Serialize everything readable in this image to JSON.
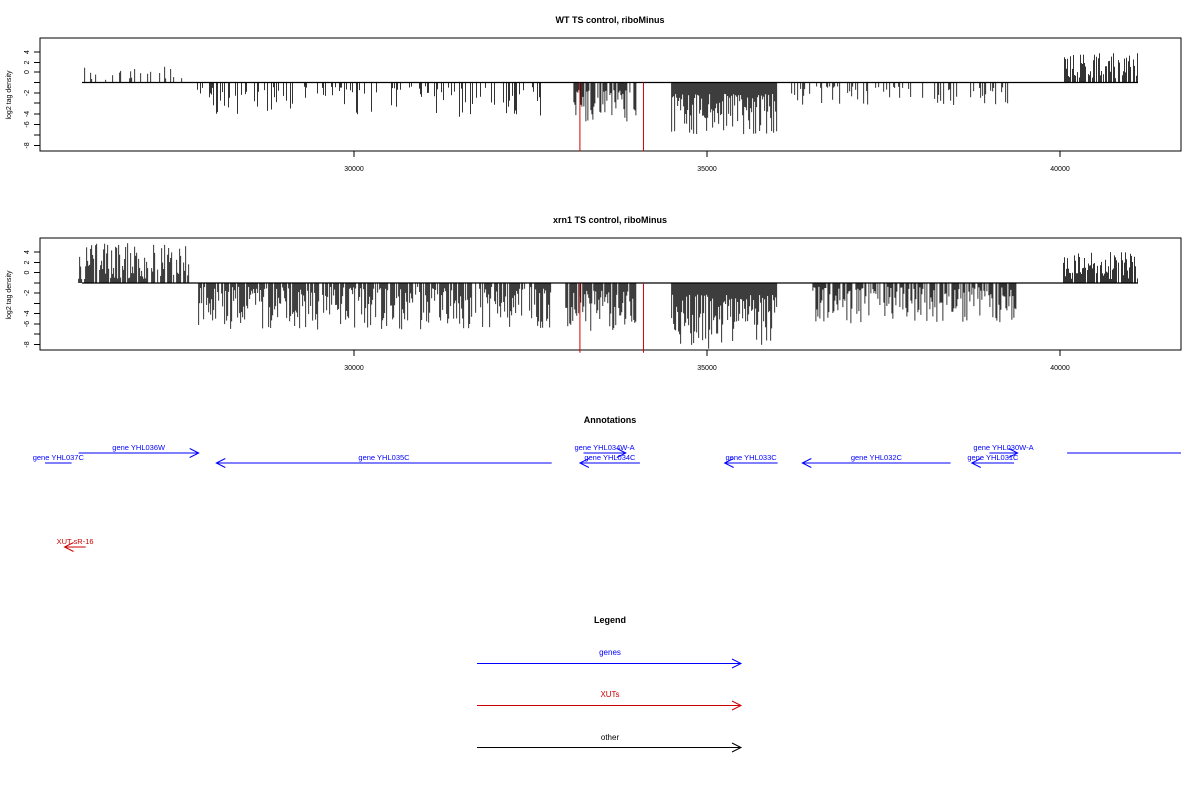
{
  "panels": [
    {
      "title": "WT TS control, riboMinus",
      "ylabel": "log2 tag density",
      "yticks": [
        "4",
        "2",
        "0",
        "-2",
        "-4",
        "-6",
        "-8"
      ],
      "xticks": [
        "30000",
        "35000",
        "40000"
      ]
    },
    {
      "title": "xrn1 TS control, riboMinus",
      "ylabel": "log2 tag density",
      "yticks": [
        "4",
        "2",
        "0",
        "-2",
        "-4",
        "-6",
        "-8"
      ],
      "xticks": [
        "30000",
        "35000",
        "40000"
      ]
    }
  ],
  "annotations": {
    "title": "Annotations",
    "genes": [
      {
        "label": "gene YHL037C",
        "start": 26000,
        "end": 25500,
        "strand": "-"
      },
      {
        "label": "gene YHL036W",
        "start": 26100,
        "end": 27800,
        "strand": "+"
      },
      {
        "label": "gene YHL035C",
        "start": 32800,
        "end": 28050,
        "strand": "-"
      },
      {
        "label": "gene YHL034W-A",
        "start": 33250,
        "end": 33850,
        "strand": "+"
      },
      {
        "label": "gene YHL034C",
        "start": 34050,
        "end": 33200,
        "strand": "-"
      },
      {
        "label": "gene YHL033C",
        "start": 36000,
        "end": 35250,
        "strand": "-"
      },
      {
        "label": "gene YHL032C",
        "start": 38450,
        "end": 36350,
        "strand": "-"
      },
      {
        "label": "gene YHL031C",
        "start": 39350,
        "end": 38750,
        "strand": "-"
      },
      {
        "label": "gene YHL030W-A",
        "start": 39000,
        "end": 39400,
        "strand": "+"
      },
      {
        "label": "",
        "start": 40100,
        "end": 41800,
        "strand": "+"
      }
    ],
    "xuts": [
      {
        "label": "XUT sR-16",
        "start": 26200,
        "end": 25900,
        "strand": "-"
      }
    ]
  },
  "legend": {
    "title": "Legend",
    "items": [
      {
        "label": "genes",
        "color": "#0000ff"
      },
      {
        "label": "XUTs",
        "color": "#cc0000"
      },
      {
        "label": "other",
        "color": "#000000"
      }
    ]
  },
  "colors": {
    "gene": "#0000ff",
    "xut": "#cc0000",
    "density": "#000000",
    "marker": "#cc0000",
    "frame": "#000000"
  },
  "chart_data": [
    {
      "type": "bar",
      "title": "WT TS control, riboMinus",
      "xlabel": "",
      "ylabel": "log2 tag density",
      "xlim": [
        25600,
        41800
      ],
      "ylim": [
        -9,
        6
      ],
      "xticks": [
        30000,
        35000,
        40000
      ],
      "yticks": [
        -8,
        -6,
        -4,
        -2,
        0,
        2,
        4
      ],
      "marker_lines": [
        {
          "x": 33200,
          "y": -9
        },
        {
          "x": 34100,
          "y": -9
        }
      ],
      "segments": [
        {
          "start": 26100,
          "end": 27600,
          "min": 0,
          "max": 2.2,
          "density": 0.25
        },
        {
          "start": 27700,
          "end": 32800,
          "min": -4.5,
          "max": -0.5,
          "density": 0.35
        },
        {
          "start": 33100,
          "end": 34000,
          "min": -5.5,
          "max": -1,
          "density": 0.7
        },
        {
          "start": 34500,
          "end": 36000,
          "min": -7,
          "max": -1.5,
          "density": 1.0
        },
        {
          "start": 36200,
          "end": 39300,
          "min": -3,
          "max": -0.5,
          "density": 0.3
        },
        {
          "start": 40050,
          "end": 41100,
          "min": 0.5,
          "max": 4,
          "density": 0.75
        }
      ]
    },
    {
      "type": "bar",
      "title": "xrn1 TS control, riboMinus",
      "xlabel": "",
      "ylabel": "log2 tag density",
      "xlim": [
        25600,
        41800
      ],
      "ylim": [
        -9,
        6
      ],
      "xticks": [
        30000,
        35000,
        40000
      ],
      "yticks": [
        -8,
        -6,
        -4,
        -2,
        0,
        2,
        4
      ],
      "marker_lines": [
        {
          "x": 33200,
          "y": -9
        },
        {
          "x": 34100,
          "y": -9
        }
      ],
      "segments": [
        {
          "start": 26100,
          "end": 27700,
          "min": 0.5,
          "max": 5.2,
          "density": 0.75
        },
        {
          "start": 27800,
          "end": 32800,
          "min": -6,
          "max": -0.5,
          "density": 0.85
        },
        {
          "start": 33000,
          "end": 34000,
          "min": -6.5,
          "max": -1,
          "density": 0.8
        },
        {
          "start": 34500,
          "end": 36000,
          "min": -8.5,
          "max": -1.5,
          "density": 1.0
        },
        {
          "start": 36500,
          "end": 39400,
          "min": -5.5,
          "max": -0.5,
          "density": 0.75
        },
        {
          "start": 40050,
          "end": 41100,
          "min": 0.5,
          "max": 4,
          "density": 0.85
        }
      ]
    }
  ]
}
